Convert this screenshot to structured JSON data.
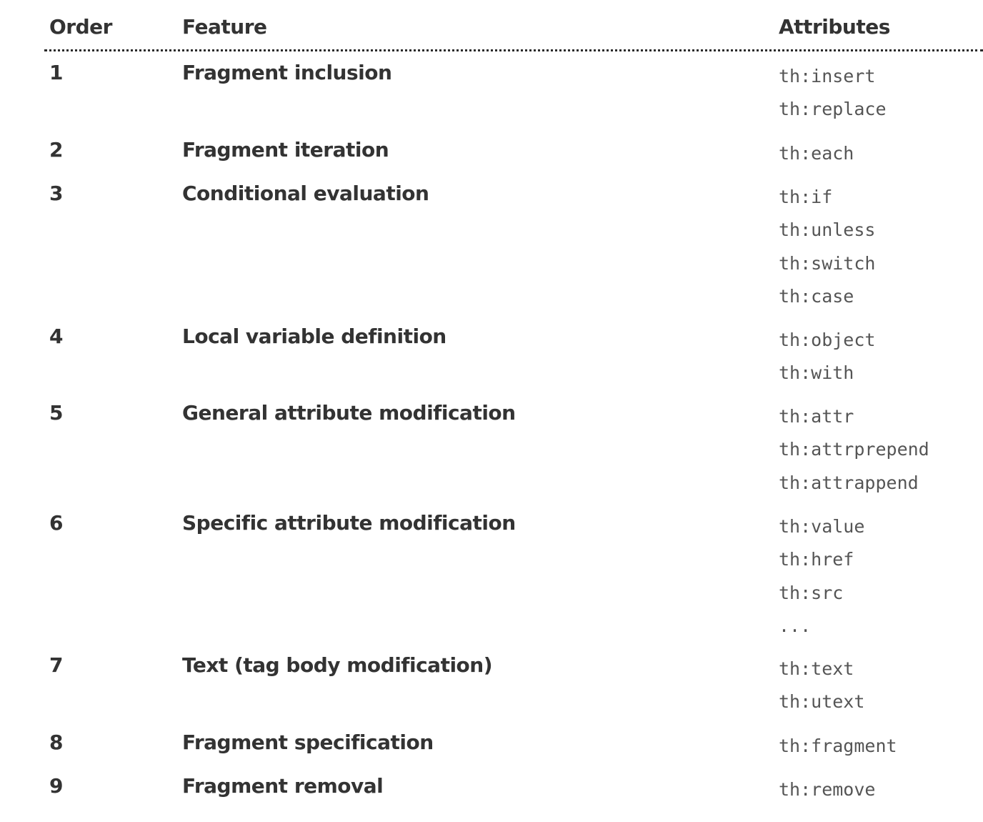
{
  "header": {
    "order": "Order",
    "feature": "Feature",
    "attributes": "Attributes"
  },
  "rows": [
    {
      "order": "1",
      "feature": "Fragment inclusion",
      "attributes": [
        "th:insert",
        "th:replace"
      ]
    },
    {
      "order": "2",
      "feature": "Fragment iteration",
      "attributes": [
        "th:each"
      ]
    },
    {
      "order": "3",
      "feature": "Conditional evaluation",
      "attributes": [
        "th:if",
        "th:unless",
        "th:switch",
        "th:case"
      ]
    },
    {
      "order": "4",
      "feature": "Local variable definition",
      "attributes": [
        "th:object",
        "th:with"
      ]
    },
    {
      "order": "5",
      "feature": "General attribute modification",
      "attributes": [
        "th:attr",
        "th:attrprepend",
        "th:attrappend"
      ]
    },
    {
      "order": "6",
      "feature": "Specific attribute modification",
      "attributes": [
        "th:value",
        "th:href",
        "th:src",
        "..."
      ]
    },
    {
      "order": "7",
      "feature": "Text (tag body modification)",
      "attributes": [
        "th:text",
        "th:utext"
      ]
    },
    {
      "order": "8",
      "feature": "Fragment specification",
      "attributes": [
        "th:fragment"
      ]
    },
    {
      "order": "9",
      "feature": "Fragment removal",
      "attributes": [
        "th:remove"
      ]
    }
  ]
}
